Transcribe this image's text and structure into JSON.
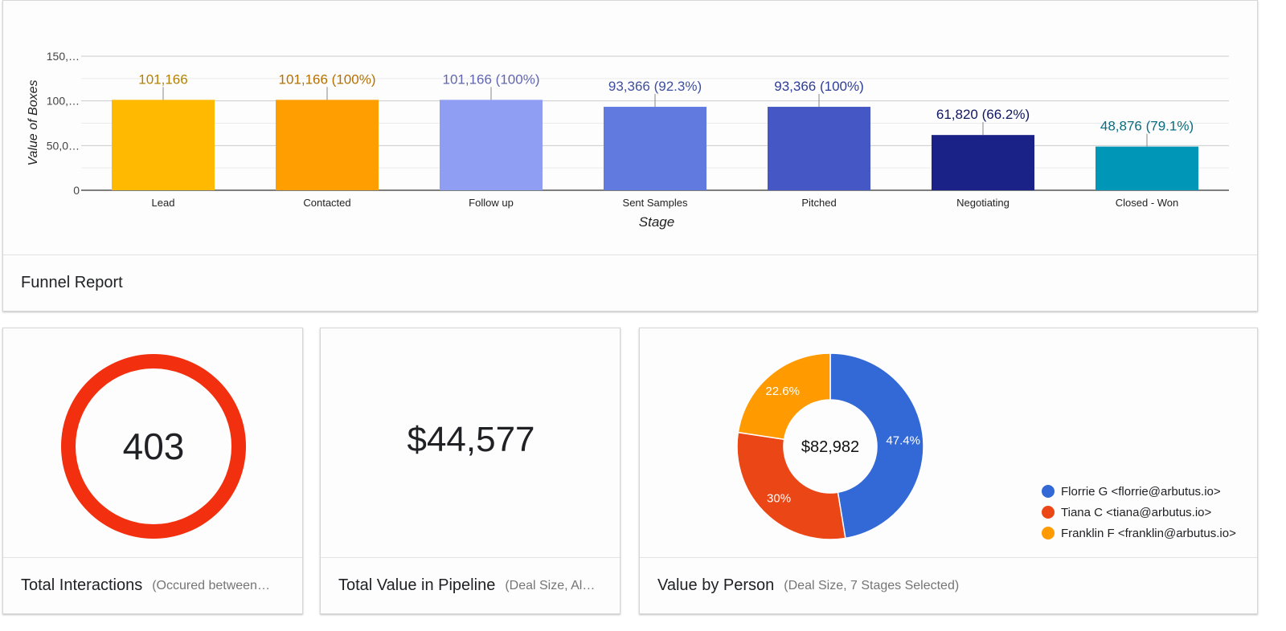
{
  "funnel": {
    "title": "Funnel Report",
    "chart_data": {
      "type": "bar",
      "xlabel": "Stage",
      "ylabel": "Value of Boxes",
      "ylim": [
        0,
        150000
      ],
      "yticks": [
        "0",
        "50,0…",
        "100,…",
        "150,…"
      ],
      "ytick_values": [
        0,
        50000,
        100000,
        150000
      ],
      "categories": [
        "Lead",
        "Contacted",
        "Follow up",
        "Sent Samples",
        "Pitched",
        "Negotiating",
        "Closed - Won"
      ],
      "values": [
        101166,
        101166,
        101166,
        93366,
        93366,
        61820,
        48876
      ],
      "data_labels": [
        "101,166",
        "101,166 (100%)",
        "101,166 (100%)",
        "93,366 (92.3%)",
        "93,366 (100%)",
        "61,820 (66.2%)",
        "48,876 (79.1%)"
      ],
      "bar_colors": [
        "#FFB900",
        "#FF9E00",
        "#8F9EF2",
        "#607AE0",
        "#4457C5",
        "#1A2187",
        "#0096B8"
      ],
      "label_colors": [
        "#B58100",
        "#B57000",
        "#6066B0",
        "#3E4FA0",
        "#2E3D95",
        "#111760",
        "#0A6C80"
      ]
    }
  },
  "interactions": {
    "value": "403",
    "title": "Total Interactions",
    "subtitle": "(Occured between…",
    "ring_color": "#F2300F"
  },
  "pipeline": {
    "value": "$44,577",
    "title": "Total Value in Pipeline",
    "subtitle": "(Deal Size, Al…"
  },
  "person": {
    "title": "Value by Person",
    "subtitle": "(Deal Size, 7 Stages Selected)",
    "center_label": "$82,982",
    "chart_data": {
      "type": "pie",
      "slices": [
        {
          "name": "Florrie G <florrie@arbutus.io>",
          "value": 47.4,
          "label": "47.4%",
          "color": "#3369D6"
        },
        {
          "name": "Tiana C <tiana@arbutus.io>",
          "value": 30,
          "label": "30%",
          "color": "#EB4716"
        },
        {
          "name": "Franklin F <franklin@arbutus.io>",
          "value": 22.6,
          "label": "22.6%",
          "color": "#FF9B00"
        }
      ]
    }
  }
}
